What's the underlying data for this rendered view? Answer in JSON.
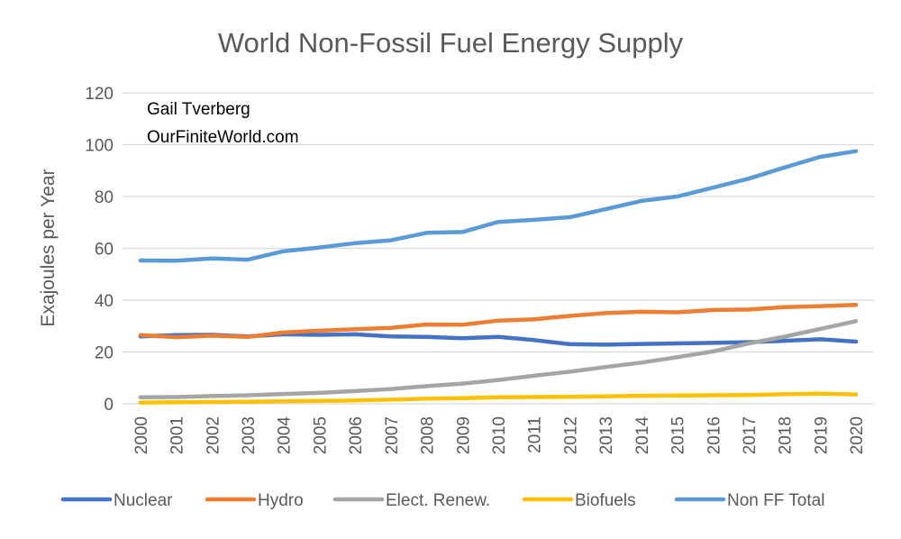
{
  "chart_data": {
    "type": "line",
    "title": "World Non-Fossil Fuel Energy Supply",
    "xlabel": "",
    "ylabel": "Exajoules per Year",
    "ylim": [
      0,
      120
    ],
    "yticks": [
      0,
      20,
      40,
      60,
      80,
      100,
      120
    ],
    "grid": true,
    "legend_position": "bottom",
    "annotations": [
      "Gail Tverberg",
      "OurFiniteWorld.com"
    ],
    "x": [
      "2000",
      "2001",
      "2002",
      "2003",
      "2004",
      "2005",
      "2006",
      "2007",
      "2008",
      "2009",
      "2010",
      "2011",
      "2012",
      "2013",
      "2014",
      "2015",
      "2016",
      "2017",
      "2018",
      "2019",
      "2020"
    ],
    "series": [
      {
        "name": "Nuclear",
        "color": "#4472c4",
        "values": [
          26,
          26.5,
          26.6,
          26,
          26.8,
          26.6,
          26.8,
          26,
          25.8,
          25.3,
          25.8,
          24.6,
          23,
          22.8,
          23.1,
          23.3,
          23.5,
          23.8,
          24.3,
          24.9,
          24
        ]
      },
      {
        "name": "Hydro",
        "color": "#ed7d31",
        "values": [
          26.5,
          25.7,
          26.3,
          25.8,
          27.5,
          28.2,
          28.8,
          29.3,
          30.6,
          30.5,
          32.1,
          32.6,
          33.9,
          35,
          35.5,
          35.3,
          36.2,
          36.4,
          37.3,
          37.7,
          38.2
        ]
      },
      {
        "name": "Elect. Renew.",
        "color": "#a5a5a5",
        "values": [
          2.5,
          2.6,
          3,
          3.3,
          3.8,
          4.2,
          4.9,
          5.7,
          6.8,
          7.8,
          9.2,
          10.8,
          12.4,
          14.2,
          15.9,
          18,
          20.2,
          23.3,
          25.9,
          28.9,
          31.9
        ]
      },
      {
        "name": "Biofuels",
        "color": "#ffc000",
        "values": [
          0.5,
          0.6,
          0.7,
          0.8,
          1.0,
          1.1,
          1.3,
          1.6,
          2.0,
          2.2,
          2.5,
          2.6,
          2.7,
          2.9,
          3.1,
          3.2,
          3.3,
          3.4,
          3.7,
          3.9,
          3.6
        ]
      },
      {
        "name": "Non FF Total",
        "color": "#5b9bd5",
        "values": [
          55.3,
          55.2,
          56.1,
          55.6,
          58.9,
          60.3,
          62,
          63.1,
          66,
          66.3,
          70.2,
          71,
          72,
          75.1,
          78.3,
          80,
          83.4,
          86.9,
          91.2,
          95.3,
          97.5
        ]
      }
    ]
  }
}
